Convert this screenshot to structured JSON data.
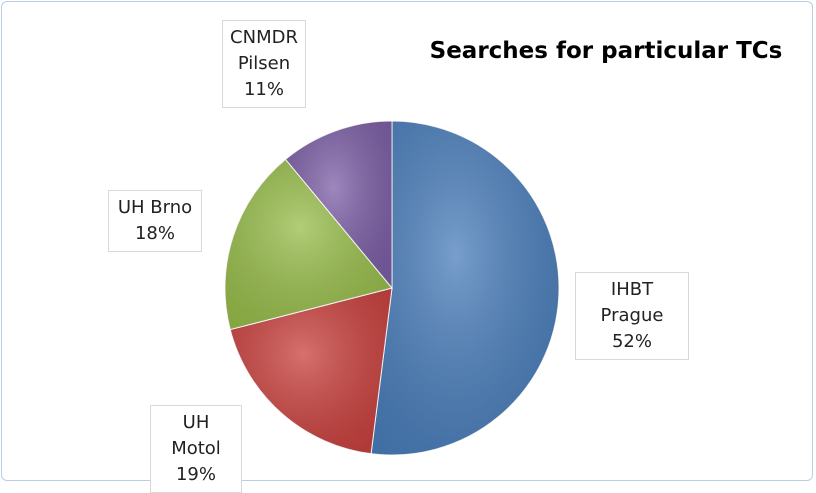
{
  "chart_data": {
    "type": "pie",
    "title": "Searches for particular TCs",
    "categories": [
      "IHBT Prague",
      "UH Motol",
      "UH Brno",
      "CNMDR Pilsen"
    ],
    "values": [
      52,
      19,
      18,
      11
    ],
    "value_labels": [
      "52%",
      "19%",
      "18%",
      "11%"
    ],
    "colors": [
      "#4a7ebb",
      "#c9413e",
      "#98bd4b",
      "#7c5fa6"
    ]
  }
}
